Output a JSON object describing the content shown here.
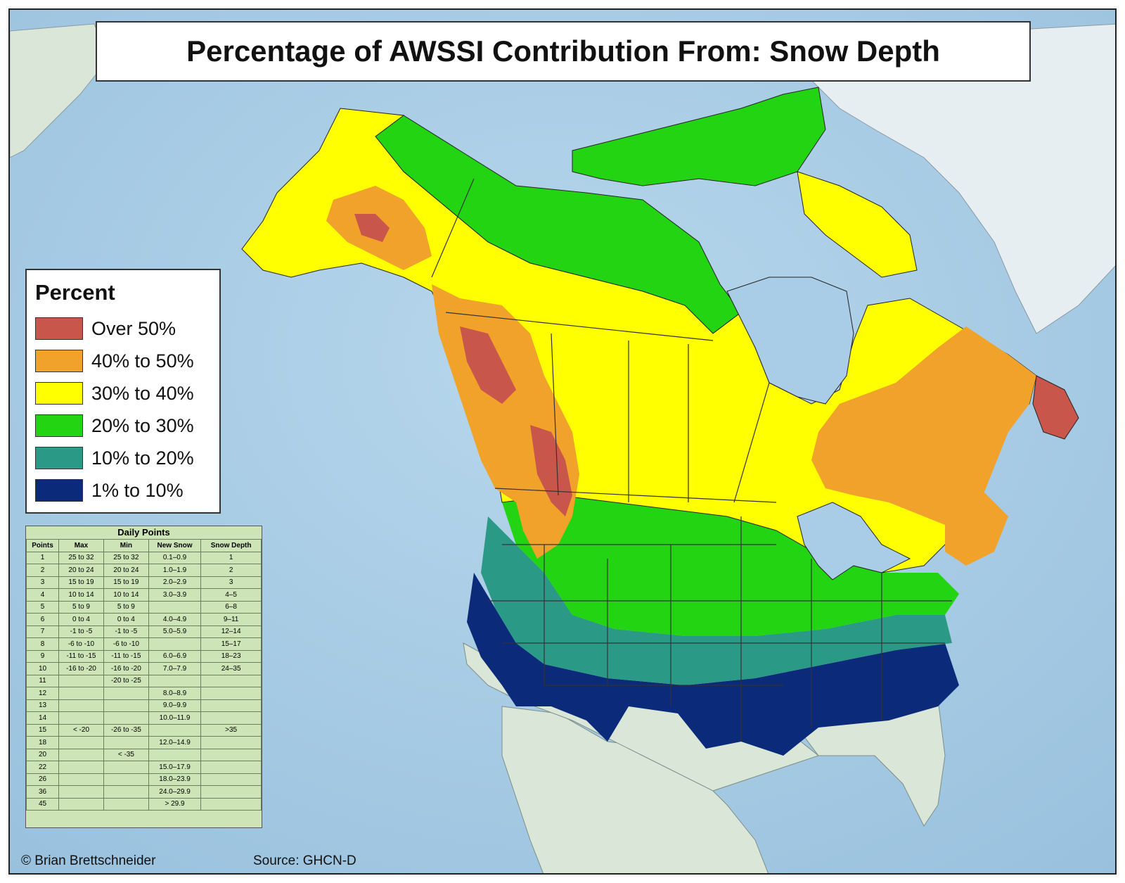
{
  "title": "Percentage of AWSSI Contribution From: Snow Depth",
  "legend": {
    "title": "Percent",
    "items": [
      {
        "label": "Over 50%",
        "color": "#c9564a"
      },
      {
        "label": "40% to 50%",
        "color": "#f0a22a"
      },
      {
        "label": "30% to 40%",
        "color": "#ffff00"
      },
      {
        "label": "20% to 30%",
        "color": "#22d412"
      },
      {
        "label": "10% to 20%",
        "color": "#2a9a86"
      },
      {
        "label": "1% to 10%",
        "color": "#0c2a7a"
      }
    ]
  },
  "points_table": {
    "title": "Daily Points",
    "headers": [
      "Points",
      "Max",
      "Min",
      "New Snow",
      "Snow Depth"
    ],
    "rows": [
      [
        "1",
        "25 to 32",
        "25 to 32",
        "0.1–0.9",
        "1"
      ],
      [
        "2",
        "20 to 24",
        "20 to 24",
        "1.0–1.9",
        "2"
      ],
      [
        "3",
        "15 to 19",
        "15 to 19",
        "2.0–2.9",
        "3"
      ],
      [
        "4",
        "10 to 14",
        "10 to 14",
        "3.0–3.9",
        "4–5"
      ],
      [
        "5",
        "5 to 9",
        "5 to 9",
        "",
        "6–8"
      ],
      [
        "6",
        "0 to 4",
        "0 to 4",
        "4.0–4.9",
        "9–11"
      ],
      [
        "7",
        "-1 to -5",
        "-1 to -5",
        "5.0–5.9",
        "12–14"
      ],
      [
        "8",
        "-6 to -10",
        "-6 to -10",
        "",
        "15–17"
      ],
      [
        "9",
        "-11 to -15",
        "-11 to -15",
        "6.0–6.9",
        "18–23"
      ],
      [
        "10",
        "-16 to -20",
        "-16 to -20",
        "7.0–7.9",
        "24–35"
      ],
      [
        "11",
        "",
        "-20 to -25",
        "",
        ""
      ],
      [
        "12",
        "",
        "",
        "8.0–8.9",
        ""
      ],
      [
        "13",
        "",
        "",
        "9.0–9.9",
        ""
      ],
      [
        "14",
        "",
        "",
        "10.0–11.9",
        ""
      ],
      [
        "15",
        "< -20",
        "-26 to -35",
        "",
        ">35"
      ],
      [
        "18",
        "",
        "",
        "12.0–14.9",
        ""
      ],
      [
        "20",
        "",
        "< -35",
        "",
        ""
      ],
      [
        "22",
        "",
        "",
        "15.0–17.9",
        ""
      ],
      [
        "26",
        "",
        "",
        "18.0–23.9",
        ""
      ],
      [
        "36",
        "",
        "",
        "24.0–29.9",
        ""
      ],
      [
        "45",
        "",
        "",
        "> 29.9",
        ""
      ]
    ]
  },
  "credit": "© Brian Brettschneider",
  "source": "Source: GHCN-D",
  "colors": {
    "ocean": "#a9cde6",
    "land_no_data": "#d9e6d8",
    "greenland": "#e6eef2",
    "title_box": "#ffffff",
    "table_bg": "#cde5b6"
  }
}
